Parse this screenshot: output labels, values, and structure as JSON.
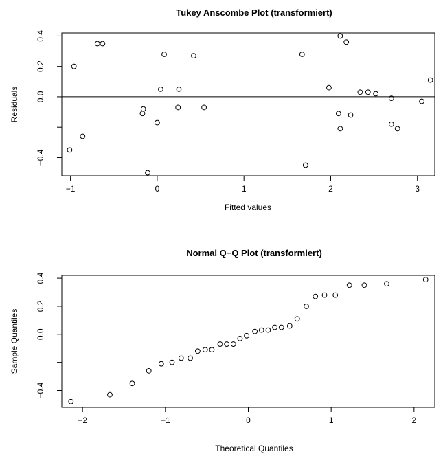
{
  "chart_data": [
    {
      "type": "scatter",
      "title": "Tukey Anscombe Plot (transformiert)",
      "xlabel": "Fitted values",
      "ylabel": "Residuals",
      "xlim": [
        -1.1,
        3.2
      ],
      "ylim": [
        -0.52,
        0.42
      ],
      "xticks": [
        -1,
        0,
        1,
        2,
        3
      ],
      "xtick_labels": [
        "−1",
        "0",
        "1",
        "2",
        "3"
      ],
      "yticks": [
        -0.4,
        -0.2,
        0.0,
        0.2,
        0.4
      ],
      "ytick_labels": [
        "−0.4",
        "",
        "0.0",
        "0.2",
        "0.4"
      ],
      "reference_line_y": 0,
      "grid": false,
      "marker": "open-circle",
      "color": "#000000",
      "points": [
        {
          "x": -1.01,
          "y": -0.35
        },
        {
          "x": -0.96,
          "y": 0.2
        },
        {
          "x": -0.86,
          "y": -0.26
        },
        {
          "x": -0.69,
          "y": 0.35
        },
        {
          "x": -0.63,
          "y": 0.35
        },
        {
          "x": -0.17,
          "y": -0.11
        },
        {
          "x": -0.16,
          "y": -0.08
        },
        {
          "x": -0.11,
          "y": -0.5
        },
        {
          "x": 0.0,
          "y": -0.17
        },
        {
          "x": 0.04,
          "y": 0.05
        },
        {
          "x": 0.08,
          "y": 0.28
        },
        {
          "x": 0.24,
          "y": -0.07
        },
        {
          "x": 0.25,
          "y": 0.05
        },
        {
          "x": 0.42,
          "y": 0.27
        },
        {
          "x": 0.54,
          "y": -0.07
        },
        {
          "x": 1.67,
          "y": 0.28
        },
        {
          "x": 1.71,
          "y": -0.45
        },
        {
          "x": 1.98,
          "y": 0.06
        },
        {
          "x": 2.09,
          "y": -0.11
        },
        {
          "x": 2.11,
          "y": -0.21
        },
        {
          "x": 2.11,
          "y": 0.4
        },
        {
          "x": 2.18,
          "y": 0.36
        },
        {
          "x": 2.23,
          "y": -0.12
        },
        {
          "x": 2.34,
          "y": 0.03
        },
        {
          "x": 2.43,
          "y": 0.03
        },
        {
          "x": 2.52,
          "y": 0.02
        },
        {
          "x": 2.7,
          "y": -0.01
        },
        {
          "x": 2.7,
          "y": -0.18
        },
        {
          "x": 2.77,
          "y": -0.21
        },
        {
          "x": 3.05,
          "y": -0.03
        },
        {
          "x": 3.15,
          "y": 0.11
        }
      ]
    },
    {
      "type": "scatter",
      "title": "Normal Q−Q Plot (transformiert)",
      "xlabel": "Theoretical Quantiles",
      "ylabel": "Sample Quantiles",
      "xlim": [
        -2.25,
        2.25
      ],
      "ylim": [
        -0.52,
        0.42
      ],
      "xticks": [
        -2,
        -1,
        0,
        1,
        2
      ],
      "xtick_labels": [
        "−2",
        "−1",
        "0",
        "1",
        "2"
      ],
      "yticks": [
        -0.4,
        -0.2,
        0.0,
        0.2,
        0.4
      ],
      "ytick_labels": [
        "−0.4",
        "",
        "0.0",
        "0.2",
        "0.4"
      ],
      "grid": false,
      "marker": "open-circle",
      "color": "#000000",
      "points": [
        {
          "x": -2.14,
          "y": -0.48
        },
        {
          "x": -1.67,
          "y": -0.43
        },
        {
          "x": -1.4,
          "y": -0.35
        },
        {
          "x": -1.2,
          "y": -0.26
        },
        {
          "x": -1.05,
          "y": -0.21
        },
        {
          "x": -0.92,
          "y": -0.2
        },
        {
          "x": -0.81,
          "y": -0.17
        },
        {
          "x": -0.7,
          "y": -0.17
        },
        {
          "x": -0.61,
          "y": -0.12
        },
        {
          "x": -0.52,
          "y": -0.11
        },
        {
          "x": -0.44,
          "y": -0.11
        },
        {
          "x": -0.34,
          "y": -0.07
        },
        {
          "x": -0.26,
          "y": -0.07
        },
        {
          "x": -0.18,
          "y": -0.07
        },
        {
          "x": -0.1,
          "y": -0.03
        },
        {
          "x": -0.02,
          "y": -0.01
        },
        {
          "x": 0.08,
          "y": 0.02
        },
        {
          "x": 0.16,
          "y": 0.03
        },
        {
          "x": 0.24,
          "y": 0.03
        },
        {
          "x": 0.32,
          "y": 0.05
        },
        {
          "x": 0.4,
          "y": 0.05
        },
        {
          "x": 0.5,
          "y": 0.06
        },
        {
          "x": 0.59,
          "y": 0.11
        },
        {
          "x": 0.7,
          "y": 0.2
        },
        {
          "x": 0.81,
          "y": 0.27
        },
        {
          "x": 0.92,
          "y": 0.28
        },
        {
          "x": 1.05,
          "y": 0.28
        },
        {
          "x": 1.22,
          "y": 0.35
        },
        {
          "x": 1.4,
          "y": 0.35
        },
        {
          "x": 1.67,
          "y": 0.36
        },
        {
          "x": 2.14,
          "y": 0.39
        }
      ]
    }
  ]
}
